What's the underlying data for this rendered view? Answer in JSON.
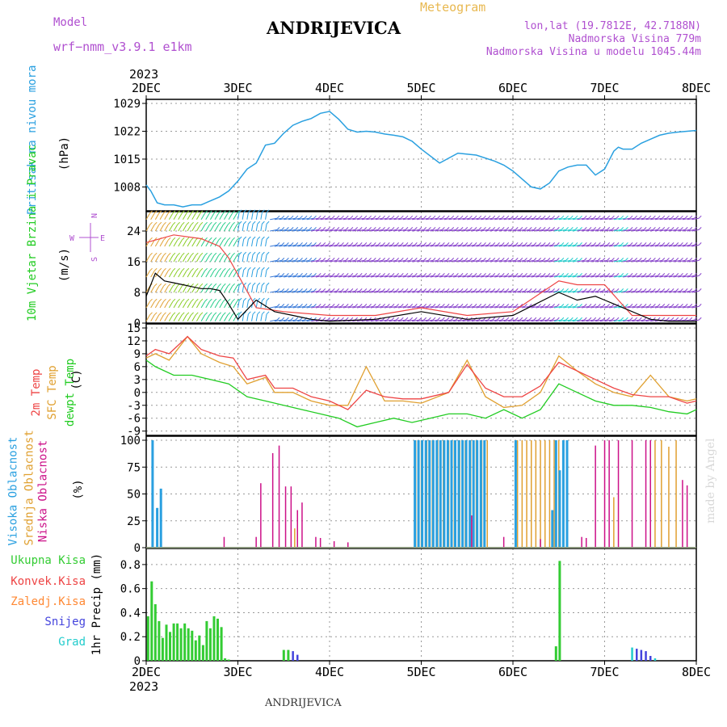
{
  "header": {
    "model_label": "Model",
    "model_name": "wrf−nmm_v3.9.1  e1km",
    "title": "ANDRIJEVICA",
    "meteogram": "Meteogram",
    "lonlat": "lon,lat (19.7812E, 42.7188N)",
    "elevation": "Nadmorska Visina 779m",
    "model_elevation": "Nadmorska Visina u modelu 1045.44m"
  },
  "footer": {
    "station": "ANDRIJEVICA",
    "credit": "made by Angel"
  },
  "colors": {
    "pressure": "#2aa0e0",
    "temp2m": "#ee4444",
    "sfctemp": "#e0a030",
    "dewpt": "#22cc22",
    "high_cloud": "#2aa0e0",
    "mid_cloud": "#e0a030",
    "low_cloud": "#cc1188",
    "total_precip": "#33cc33",
    "conv_precip": "#ee4444",
    "frozen_precip": "#ff8833",
    "snow": "#4444dd",
    "graupel": "#22cccc",
    "wind_gust": "#ee4444",
    "wind_speed": "#000000"
  },
  "chart_data": [
    {
      "type": "line",
      "panel": "pressure",
      "ylabel_left": "Pritisak na nivou mora",
      "ylabel_unit": "(hPa)",
      "ylim": [
        1002,
        1029
      ],
      "yticks": [
        1008,
        1015,
        1022,
        1029
      ],
      "x_top_year": "2023",
      "x_ticks": [
        "2DEC",
        "3DEC",
        "4DEC",
        "5DEC",
        "6DEC",
        "7DEC",
        "8DEC"
      ],
      "grid": true,
      "series": [
        {
          "x": [
            0,
            0.05,
            0.12,
            0.2,
            0.3,
            0.4,
            0.5,
            0.6,
            0.7,
            0.8,
            0.9,
            1.0,
            1.1,
            1.2,
            1.3,
            1.4,
            1.5,
            1.6,
            1.7,
            1.8,
            1.9,
            2.0,
            2.1,
            2.2,
            2.3,
            2.4,
            2.5,
            2.6,
            2.7,
            2.8,
            2.9,
            3.0,
            3.2,
            3.4,
            3.6,
            3.8,
            3.9,
            4.0,
            4.1,
            4.2,
            4.3,
            4.4,
            4.5,
            4.6,
            4.7,
            4.8,
            4.9,
            5.0,
            5.1,
            5.15,
            5.2,
            5.3,
            5.4,
            5.5,
            5.6,
            5.7,
            5.8,
            5.9,
            6.0
          ],
          "values": [
            1008.5,
            1007,
            1004,
            1003.5,
            1003.5,
            1003,
            1003.5,
            1003.5,
            1004.5,
            1005.5,
            1007,
            1009.5,
            1012.5,
            1014,
            1018.5,
            1019,
            1021.5,
            1023.5,
            1024.5,
            1025.2,
            1026.5,
            1027,
            1025,
            1022.5,
            1021.8,
            1022,
            1021.8,
            1021.3,
            1021,
            1020.6,
            1019.5,
            1017.5,
            1014,
            1016.5,
            1016,
            1014.5,
            1013.5,
            1012,
            1010,
            1008,
            1007.5,
            1009,
            1012,
            1013,
            1013.5,
            1013.5,
            1011,
            1012.5,
            1017,
            1018,
            1017.5,
            1017.5,
            1019,
            1020,
            1021,
            1021.5,
            1021.8,
            1022,
            1022.2
          ]
        }
      ]
    },
    {
      "type": "line",
      "panel": "wind",
      "ylabel_left": "10m Vjetar Brzina i Pravac",
      "ylabel_unit": "(m/s)",
      "compass": [
        "N",
        "W",
        "E",
        "S"
      ],
      "ylim": [
        0,
        28
      ],
      "yticks": [
        0,
        8,
        16,
        24
      ],
      "series": [
        {
          "name": "speed",
          "x": [
            0,
            0.1,
            0.2,
            0.3,
            0.4,
            0.5,
            0.6,
            0.7,
            0.8,
            0.9,
            1.0,
            1.2,
            1.4,
            1.6,
            1.8,
            2.0,
            2.5,
            3.0,
            3.5,
            4.0,
            4.5,
            4.7,
            4.9,
            5.0,
            5.2,
            5.5,
            5.7,
            6.0
          ],
          "values": [
            7,
            13,
            11,
            10.5,
            10,
            9.5,
            9,
            9,
            8.5,
            5,
            1,
            6,
            3,
            2,
            1,
            0.5,
            1,
            3,
            1,
            2,
            8,
            6,
            7,
            6,
            4,
            1,
            0.5,
            0.5
          ]
        },
        {
          "name": "gust",
          "x": [
            0,
            0.3,
            0.6,
            0.8,
            0.9,
            1.2,
            1.5,
            2.0,
            2.5,
            3.0,
            3.5,
            4.0,
            4.5,
            4.7,
            5.0,
            5.3,
            6.0
          ],
          "values": [
            21,
            23,
            22,
            20,
            17,
            4,
            3,
            2,
            2,
            4,
            2,
            3,
            11,
            10,
            10,
            2,
            2
          ]
        }
      ]
    },
    {
      "type": "line",
      "panel": "temperature",
      "ylabels_left": [
        "2m Temp",
        "SFC Temp",
        "dewpt Temp"
      ],
      "ylabel_unit": "(C)",
      "ylim": [
        -10,
        15
      ],
      "yticks": [
        -9,
        -6,
        -3,
        0,
        3,
        6,
        9,
        12,
        15
      ],
      "series": [
        {
          "name": "2m Temp",
          "x": [
            0,
            0.1,
            0.25,
            0.45,
            0.6,
            0.8,
            0.95,
            1.1,
            1.3,
            1.4,
            1.6,
            1.8,
            2.0,
            2.2,
            2.4,
            2.6,
            2.8,
            3.0,
            3.3,
            3.5,
            3.7,
            3.9,
            4.1,
            4.3,
            4.5,
            4.7,
            4.9,
            5.1,
            5.3,
            5.5,
            5.7,
            5.9,
            6.0
          ],
          "values": [
            8.5,
            10,
            9,
            13,
            10,
            8.5,
            8,
            3,
            4,
            1,
            1,
            -1,
            -2,
            -4,
            0.5,
            -1,
            -1.5,
            -1.5,
            0,
            6.5,
            1,
            -1,
            -1,
            1.5,
            7,
            5,
            3,
            1,
            -0.5,
            -1,
            -1,
            -2.5,
            -2
          ]
        },
        {
          "name": "SFC Temp",
          "x": [
            0,
            0.1,
            0.25,
            0.45,
            0.6,
            0.8,
            0.95,
            1.1,
            1.3,
            1.4,
            1.6,
            1.8,
            2.0,
            2.2,
            2.4,
            2.6,
            2.8,
            3.0,
            3.3,
            3.5,
            3.7,
            3.9,
            4.1,
            4.3,
            4.5,
            4.7,
            4.9,
            5.1,
            5.3,
            5.5,
            5.7,
            5.9,
            6.0
          ],
          "values": [
            8,
            9,
            7.5,
            13,
            9,
            7,
            6,
            2,
            3.5,
            0,
            0,
            -2,
            -3,
            -3,
            6,
            -2,
            -2,
            -2.5,
            0,
            7.5,
            -1,
            -3.5,
            -3,
            0,
            8.5,
            5,
            2,
            0,
            -1,
            4,
            -1,
            -2,
            -1.5
          ]
        },
        {
          "name": "dewpt Temp",
          "x": [
            0,
            0.1,
            0.3,
            0.5,
            0.7,
            0.9,
            1.1,
            1.3,
            1.5,
            1.7,
            1.9,
            2.1,
            2.3,
            2.5,
            2.7,
            2.9,
            3.1,
            3.3,
            3.5,
            3.7,
            3.9,
            4.1,
            4.3,
            4.5,
            4.7,
            4.9,
            5.1,
            5.3,
            5.5,
            5.7,
            5.9,
            6.0
          ],
          "values": [
            7.5,
            6,
            4,
            4,
            3,
            2,
            -1,
            -2,
            -3,
            -4,
            -5,
            -6,
            -8,
            -7,
            -6,
            -7,
            -6,
            -5,
            -5,
            -6,
            -4,
            -6,
            -4,
            2,
            0,
            -2,
            -3,
            -3,
            -3.5,
            -4.5,
            -5,
            -4
          ]
        }
      ]
    },
    {
      "type": "bar",
      "panel": "cloud",
      "ylabels_left": [
        "Visoka Oblacnost",
        "Srednja Oblacnost",
        "Niska Oblacnost"
      ],
      "ylabel_unit": "(%)",
      "ylim": [
        0,
        100
      ],
      "yticks": [
        0,
        25,
        50,
        75,
        100
      ],
      "series": [
        {
          "name": "Visoka Oblacnost",
          "x": [
            0.07,
            0.12,
            0.16,
            2.93,
            2.97,
            3.01,
            3.05,
            3.09,
            3.13,
            3.17,
            3.21,
            3.25,
            3.29,
            3.33,
            3.37,
            3.41,
            3.45,
            3.49,
            3.53,
            3.57,
            3.61,
            3.65,
            3.69,
            4.03,
            4.43,
            4.47,
            4.51,
            4.55,
            4.59
          ],
          "values": [
            100,
            37,
            55,
            100,
            100,
            100,
            100,
            100,
            100,
            100,
            100,
            100,
            100,
            100,
            100,
            100,
            100,
            100,
            100,
            100,
            100,
            100,
            100,
            100,
            35,
            100,
            72,
            100,
            100
          ]
        },
        {
          "name": "Srednja Oblacnost",
          "x": [
            1.62,
            2.94,
            3.0,
            3.06,
            3.12,
            3.18,
            3.24,
            3.3,
            3.36,
            3.42,
            3.48,
            3.54,
            3.6,
            3.66,
            3.72,
            4.05,
            4.1,
            4.15,
            4.2,
            4.25,
            4.3,
            4.35,
            4.4,
            4.45,
            4.5,
            4.55,
            5.1,
            5.55,
            5.62,
            5.7,
            5.78
          ],
          "values": [
            18,
            100,
            100,
            100,
            100,
            100,
            100,
            100,
            100,
            100,
            100,
            100,
            100,
            100,
            100,
            100,
            100,
            100,
            100,
            100,
            100,
            100,
            100,
            100,
            100,
            100,
            47,
            100,
            100,
            94,
            100
          ]
        },
        {
          "name": "Niska Oblacnost",
          "x": [
            0.85,
            1.2,
            1.25,
            1.38,
            1.45,
            1.52,
            1.58,
            1.65,
            1.7,
            1.85,
            1.9,
            2.05,
            2.2,
            3.55,
            3.9,
            4.3,
            4.75,
            4.8,
            4.9,
            5.0,
            5.05,
            5.15,
            5.3,
            5.45,
            5.5,
            5.85,
            5.9
          ],
          "values": [
            10,
            10,
            60,
            88,
            95,
            57,
            57,
            35,
            42,
            10,
            9,
            6,
            5,
            30,
            10,
            8,
            10,
            9,
            95,
            100,
            100,
            100,
            100,
            100,
            100,
            63,
            58
          ]
        }
      ]
    },
    {
      "type": "bar",
      "panel": "precip",
      "ylabel": "1hr Precip (mm)",
      "ylabels_left": [
        "Ukupna Kisa",
        "Konvek.Kisa",
        "Zaledj.Kisa",
        "Snijeg",
        "Grad"
      ],
      "ylim": [
        0,
        0.9
      ],
      "yticks": [
        0,
        0.2,
        0.4,
        0.6,
        0.8
      ],
      "x_bottom_year": "2023",
      "x_ticks": [
        "2DEC",
        "3DEC",
        "4DEC",
        "5DEC",
        "6DEC",
        "7DEC",
        "8DEC"
      ],
      "series": [
        {
          "name": "Ukupna Kisa",
          "x": [
            0.02,
            0.06,
            0.1,
            0.14,
            0.18,
            0.22,
            0.26,
            0.3,
            0.34,
            0.38,
            0.42,
            0.46,
            0.5,
            0.54,
            0.58,
            0.62,
            0.66,
            0.7,
            0.74,
            0.78,
            0.82,
            0.86,
            0.9,
            1.5,
            1.55,
            4.47,
            4.51
          ],
          "values": [
            0.37,
            0.66,
            0.47,
            0.33,
            0.19,
            0.3,
            0.24,
            0.31,
            0.31,
            0.27,
            0.31,
            0.27,
            0.25,
            0.17,
            0.21,
            0.13,
            0.33,
            0.27,
            0.37,
            0.35,
            0.28,
            0.02,
            0.01,
            0.09,
            0.09,
            0.12,
            0.83
          ]
        },
        {
          "name": "Snijeg",
          "x": [
            1.6,
            1.65,
            5.35,
            5.4,
            5.45,
            5.5
          ],
          "values": [
            0.08,
            0.05,
            0.1,
            0.09,
            0.08,
            0.04
          ]
        },
        {
          "name": "Grad",
          "x": [
            5.3,
            5.55
          ],
          "values": [
            0.11,
            0.02
          ]
        }
      ]
    }
  ]
}
